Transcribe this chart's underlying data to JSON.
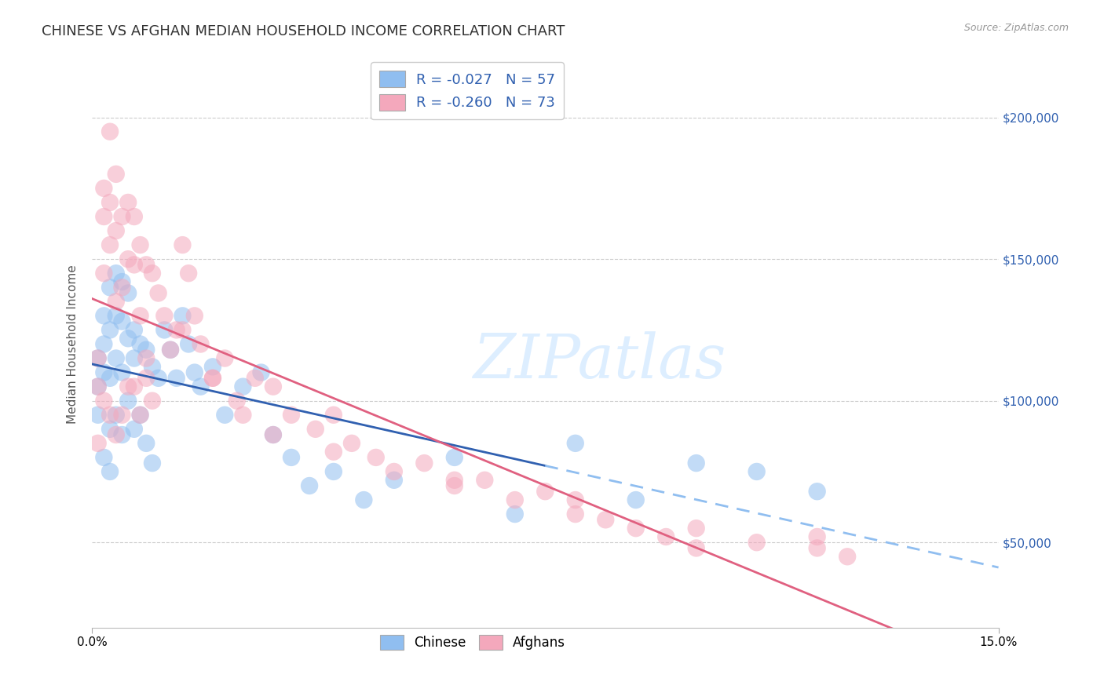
{
  "title": "CHINESE VS AFGHAN MEDIAN HOUSEHOLD INCOME CORRELATION CHART",
  "source": "Source: ZipAtlas.com",
  "ylabel": "Median Household Income",
  "x_min": 0.0,
  "x_max": 0.15,
  "y_min": 20000,
  "y_max": 220000,
  "ytick_labels": [
    "$50,000",
    "$100,000",
    "$150,000",
    "$200,000"
  ],
  "ytick_values": [
    50000,
    100000,
    150000,
    200000
  ],
  "xtick_labels": [
    "0.0%",
    "15.0%"
  ],
  "xtick_values": [
    0.0,
    0.15
  ],
  "watermark": "ZIPatlas",
  "legend_R": [
    "R = -0.027",
    "R = -0.260"
  ],
  "legend_N": [
    "N = 57",
    "N = 73"
  ],
  "chinese_color": "#90BEF0",
  "afghan_color": "#F4A8BC",
  "chinese_line_color": "#3060B0",
  "afghan_line_color": "#E06080",
  "chinese_line_dash_color": "#90BEF0",
  "background_color": "#ffffff",
  "grid_color": "#cccccc",
  "title_fontsize": 13,
  "axis_label_fontsize": 11,
  "tick_fontsize": 11,
  "legend_fontsize": 12,
  "watermark_color": "#ddeeff",
  "watermark_fontsize": 56,
  "chinese_x": [
    0.001,
    0.001,
    0.001,
    0.002,
    0.002,
    0.002,
    0.002,
    0.003,
    0.003,
    0.003,
    0.003,
    0.003,
    0.004,
    0.004,
    0.004,
    0.004,
    0.005,
    0.005,
    0.005,
    0.005,
    0.006,
    0.006,
    0.006,
    0.007,
    0.007,
    0.007,
    0.008,
    0.008,
    0.009,
    0.009,
    0.01,
    0.01,
    0.011,
    0.012,
    0.013,
    0.014,
    0.015,
    0.016,
    0.017,
    0.018,
    0.02,
    0.022,
    0.025,
    0.028,
    0.03,
    0.033,
    0.036,
    0.04,
    0.045,
    0.05,
    0.06,
    0.07,
    0.08,
    0.09,
    0.1,
    0.11,
    0.12
  ],
  "chinese_y": [
    115000,
    105000,
    95000,
    130000,
    120000,
    110000,
    80000,
    140000,
    125000,
    108000,
    90000,
    75000,
    145000,
    130000,
    115000,
    95000,
    142000,
    128000,
    110000,
    88000,
    138000,
    122000,
    100000,
    125000,
    115000,
    90000,
    120000,
    95000,
    118000,
    85000,
    112000,
    78000,
    108000,
    125000,
    118000,
    108000,
    130000,
    120000,
    110000,
    105000,
    112000,
    95000,
    105000,
    110000,
    88000,
    80000,
    70000,
    75000,
    65000,
    72000,
    80000,
    60000,
    85000,
    65000,
    78000,
    75000,
    68000
  ],
  "afghan_x": [
    0.001,
    0.001,
    0.001,
    0.002,
    0.002,
    0.002,
    0.002,
    0.003,
    0.003,
    0.003,
    0.003,
    0.004,
    0.004,
    0.004,
    0.004,
    0.005,
    0.005,
    0.005,
    0.006,
    0.006,
    0.006,
    0.007,
    0.007,
    0.007,
    0.008,
    0.008,
    0.008,
    0.009,
    0.009,
    0.01,
    0.01,
    0.011,
    0.012,
    0.013,
    0.014,
    0.015,
    0.016,
    0.017,
    0.018,
    0.02,
    0.022,
    0.024,
    0.027,
    0.03,
    0.033,
    0.037,
    0.04,
    0.043,
    0.047,
    0.05,
    0.055,
    0.06,
    0.065,
    0.07,
    0.075,
    0.08,
    0.085,
    0.09,
    0.095,
    0.1,
    0.11,
    0.12,
    0.125,
    0.009,
    0.015,
    0.02,
    0.025,
    0.03,
    0.04,
    0.06,
    0.08,
    0.1,
    0.12
  ],
  "afghan_y": [
    115000,
    105000,
    85000,
    175000,
    165000,
    145000,
    100000,
    195000,
    170000,
    155000,
    95000,
    180000,
    160000,
    135000,
    88000,
    165000,
    140000,
    95000,
    170000,
    150000,
    105000,
    165000,
    148000,
    105000,
    155000,
    130000,
    95000,
    148000,
    108000,
    145000,
    100000,
    138000,
    130000,
    118000,
    125000,
    155000,
    145000,
    130000,
    120000,
    108000,
    115000,
    100000,
    108000,
    105000,
    95000,
    90000,
    95000,
    85000,
    80000,
    75000,
    78000,
    70000,
    72000,
    65000,
    68000,
    60000,
    58000,
    55000,
    52000,
    48000,
    50000,
    52000,
    45000,
    115000,
    125000,
    108000,
    95000,
    88000,
    82000,
    72000,
    65000,
    55000,
    48000
  ]
}
